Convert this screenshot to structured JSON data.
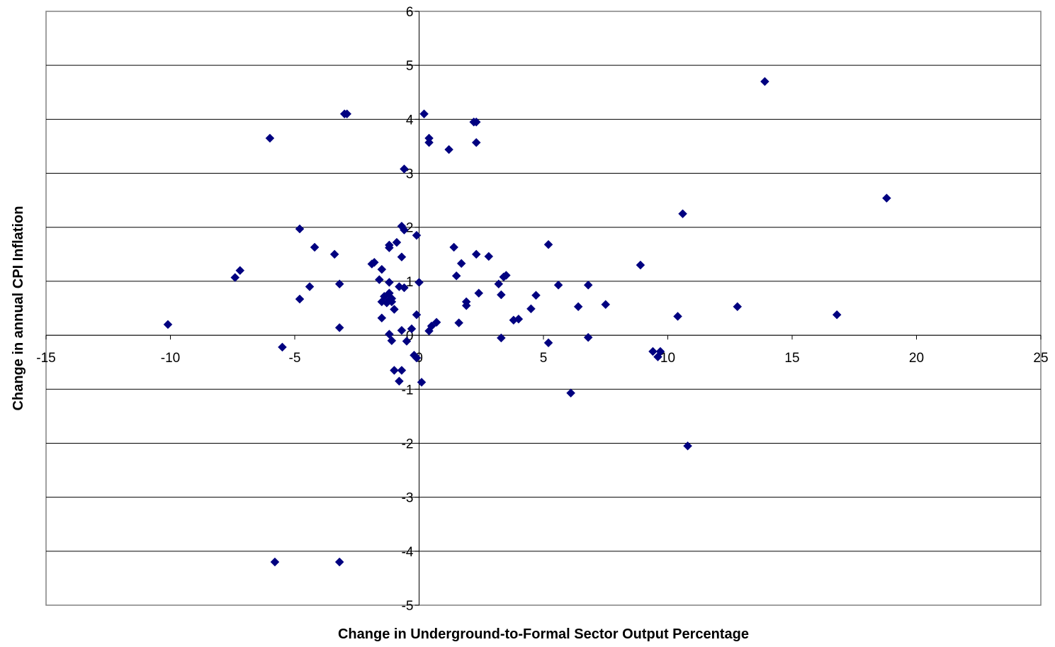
{
  "chart_data": {
    "type": "scatter",
    "title": "",
    "xlabel": "Change in Underground-to-Formal Sector Output Percentage",
    "ylabel": "Change in annual CPI Inflation",
    "xlim": [
      -15,
      25
    ],
    "ylim": [
      -5,
      6
    ],
    "x_ticks": [
      -15,
      -10,
      -5,
      0,
      5,
      10,
      15,
      20,
      25
    ],
    "y_ticks": [
      -5,
      -4,
      -3,
      -2,
      -1,
      0,
      1,
      2,
      3,
      4,
      5,
      6
    ],
    "grid": "horizontal",
    "legend": "none",
    "marker": "diamond",
    "marker_color": "#000080",
    "points": [
      {
        "x": -10.1,
        "y": 0.2
      },
      {
        "x": -7.4,
        "y": 1.07
      },
      {
        "x": -7.2,
        "y": 1.2
      },
      {
        "x": -6.0,
        "y": 3.65
      },
      {
        "x": -5.8,
        "y": -4.2
      },
      {
        "x": -5.5,
        "y": -0.22
      },
      {
        "x": -4.8,
        "y": 1.97
      },
      {
        "x": -4.8,
        "y": 0.67
      },
      {
        "x": -4.4,
        "y": 0.9
      },
      {
        "x": -4.2,
        "y": 1.63
      },
      {
        "x": -3.4,
        "y": 1.5
      },
      {
        "x": -3.2,
        "y": 0.95
      },
      {
        "x": -3.2,
        "y": 0.14
      },
      {
        "x": -3.2,
        "y": -4.2
      },
      {
        "x": -3.0,
        "y": 4.1
      },
      {
        "x": -2.9,
        "y": 4.1
      },
      {
        "x": -1.9,
        "y": 1.32
      },
      {
        "x": -1.8,
        "y": 1.35
      },
      {
        "x": -1.6,
        "y": 1.03
      },
      {
        "x": -1.5,
        "y": 1.22
      },
      {
        "x": -1.5,
        "y": 0.62
      },
      {
        "x": -1.5,
        "y": 0.32
      },
      {
        "x": -1.4,
        "y": 0.72
      },
      {
        "x": -1.3,
        "y": 0.6
      },
      {
        "x": -1.2,
        "y": 1.67
      },
      {
        "x": -1.2,
        "y": 1.62
      },
      {
        "x": -1.2,
        "y": 0.98
      },
      {
        "x": -1.2,
        "y": 0.78
      },
      {
        "x": -1.2,
        "y": 0.65
      },
      {
        "x": -1.2,
        "y": 0.02
      },
      {
        "x": -1.1,
        "y": 0.68
      },
      {
        "x": -1.1,
        "y": 0.62
      },
      {
        "x": -1.1,
        "y": -0.1
      },
      {
        "x": -1.0,
        "y": 0.48
      },
      {
        "x": -1.0,
        "y": -0.65
      },
      {
        "x": -0.9,
        "y": 1.72
      },
      {
        "x": -0.8,
        "y": 0.9
      },
      {
        "x": -0.8,
        "y": -0.85
      },
      {
        "x": -0.7,
        "y": 2.02
      },
      {
        "x": -0.7,
        "y": 1.45
      },
      {
        "x": -0.7,
        "y": 0.09
      },
      {
        "x": -0.7,
        "y": -0.65
      },
      {
        "x": -0.6,
        "y": 1.95
      },
      {
        "x": -0.6,
        "y": 0.88
      },
      {
        "x": -0.6,
        "y": 3.08
      },
      {
        "x": -0.5,
        "y": -0.11
      },
      {
        "x": -0.3,
        "y": 0.12
      },
      {
        "x": -0.2,
        "y": -0.37
      },
      {
        "x": -0.1,
        "y": 1.85
      },
      {
        "x": -0.1,
        "y": 0.38
      },
      {
        "x": -0.1,
        "y": -0.42
      },
      {
        "x": 0.0,
        "y": 0.98
      },
      {
        "x": 0.1,
        "y": -0.87
      },
      {
        "x": 0.2,
        "y": 4.1
      },
      {
        "x": 0.4,
        "y": 3.65
      },
      {
        "x": 0.4,
        "y": 3.57
      },
      {
        "x": 0.4,
        "y": 0.08
      },
      {
        "x": 0.5,
        "y": 0.17
      },
      {
        "x": 0.7,
        "y": 0.24
      },
      {
        "x": 1.2,
        "y": 3.44
      },
      {
        "x": 1.4,
        "y": 1.63
      },
      {
        "x": 1.5,
        "y": 1.1
      },
      {
        "x": 1.6,
        "y": 0.23
      },
      {
        "x": 1.7,
        "y": 1.33
      },
      {
        "x": 1.9,
        "y": 0.62
      },
      {
        "x": 1.9,
        "y": 0.55
      },
      {
        "x": 2.2,
        "y": 3.95
      },
      {
        "x": 2.3,
        "y": 3.95
      },
      {
        "x": 2.3,
        "y": 3.57
      },
      {
        "x": 2.3,
        "y": 1.5
      },
      {
        "x": 2.4,
        "y": 0.78
      },
      {
        "x": 2.8,
        "y": 1.46
      },
      {
        "x": 3.2,
        "y": 0.95
      },
      {
        "x": 3.3,
        "y": 0.75
      },
      {
        "x": 3.3,
        "y": -0.05
      },
      {
        "x": 3.4,
        "y": 1.08
      },
      {
        "x": 3.5,
        "y": 1.11
      },
      {
        "x": 3.8,
        "y": 0.28
      },
      {
        "x": 4.0,
        "y": 0.3
      },
      {
        "x": 4.5,
        "y": 0.49
      },
      {
        "x": 4.7,
        "y": 0.74
      },
      {
        "x": 5.2,
        "y": 1.68
      },
      {
        "x": 5.2,
        "y": -0.14
      },
      {
        "x": 5.6,
        "y": 0.93
      },
      {
        "x": 6.1,
        "y": -1.07
      },
      {
        "x": 6.4,
        "y": 0.53
      },
      {
        "x": 6.8,
        "y": 0.93
      },
      {
        "x": 6.8,
        "y": -0.04
      },
      {
        "x": 7.5,
        "y": 0.57
      },
      {
        "x": 8.9,
        "y": 1.3
      },
      {
        "x": 9.4,
        "y": -0.3
      },
      {
        "x": 9.6,
        "y": -0.4
      },
      {
        "x": 9.7,
        "y": -0.3
      },
      {
        "x": 10.4,
        "y": 0.35
      },
      {
        "x": 10.6,
        "y": 2.25
      },
      {
        "x": 10.8,
        "y": -2.05
      },
      {
        "x": 12.8,
        "y": 0.53
      },
      {
        "x": 13.9,
        "y": 4.7
      },
      {
        "x": 16.8,
        "y": 0.38
      },
      {
        "x": 18.8,
        "y": 2.54
      }
    ]
  }
}
